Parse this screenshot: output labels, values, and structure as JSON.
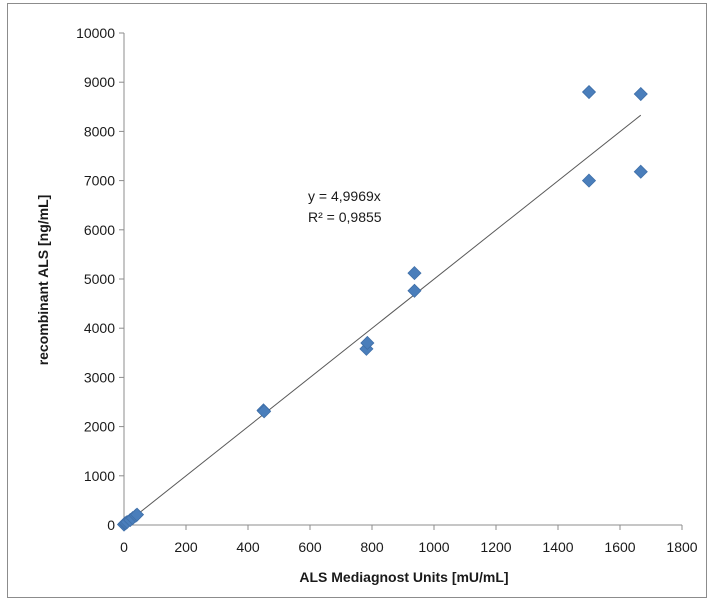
{
  "chart_data": {
    "type": "scatter",
    "title": "",
    "xlabel": "ALS Mediagnost Units [mU/mL]",
    "ylabel": "recombinant ALS [ng/mL]",
    "xlim": [
      0,
      1800
    ],
    "ylim": [
      0,
      10000
    ],
    "x_ticks": [
      0,
      200,
      400,
      600,
      800,
      1000,
      1200,
      1400,
      1600,
      1800
    ],
    "y_ticks": [
      0,
      1000,
      2000,
      3000,
      4000,
      5000,
      6000,
      7000,
      8000,
      9000,
      10000
    ],
    "grid": false,
    "legend": "none",
    "marker": "diamond",
    "marker_color": "#4a7ebb",
    "trendline_color": "#595959",
    "trendline": {
      "slope": 4.9969,
      "x_range": [
        0,
        1667
      ],
      "equation": "y = 4,9969x",
      "r_squared": "R² = 0,9855"
    },
    "points": [
      {
        "x": 0,
        "y": 10
      },
      {
        "x": 3,
        "y": 30
      },
      {
        "x": 6,
        "y": 40
      },
      {
        "x": 10,
        "y": 60
      },
      {
        "x": 20,
        "y": 100
      },
      {
        "x": 28,
        "y": 140
      },
      {
        "x": 38,
        "y": 190
      },
      {
        "x": 42,
        "y": 210
      },
      {
        "x": 450,
        "y": 2330
      },
      {
        "x": 452,
        "y": 2310
      },
      {
        "x": 782,
        "y": 3580
      },
      {
        "x": 785,
        "y": 3700
      },
      {
        "x": 937,
        "y": 4760
      },
      {
        "x": 937,
        "y": 5120
      },
      {
        "x": 1500,
        "y": 7000
      },
      {
        "x": 1500,
        "y": 8800
      },
      {
        "x": 1667,
        "y": 7180
      },
      {
        "x": 1667,
        "y": 8760
      }
    ]
  }
}
